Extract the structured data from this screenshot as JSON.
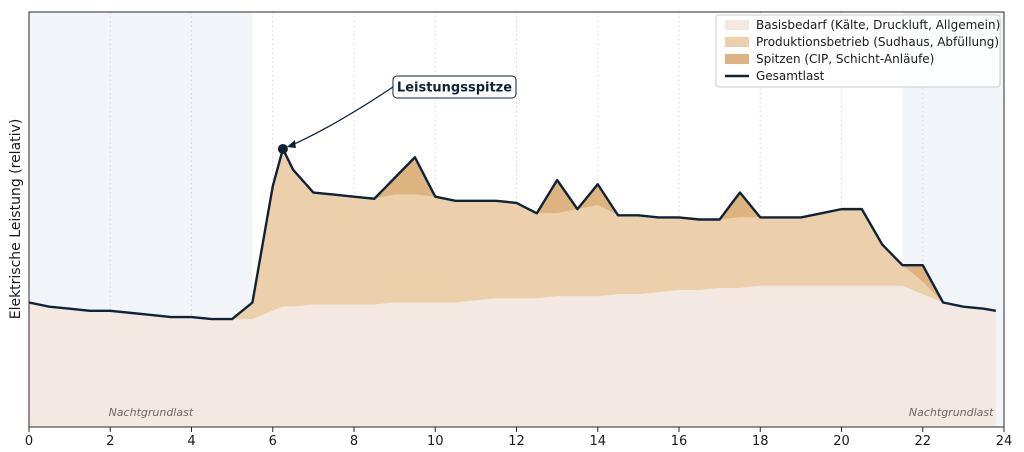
{
  "chart_data": {
    "type": "area",
    "title": "",
    "xlabel": "",
    "ylabel": "Elektrische Leistung (relativ)",
    "xlim": [
      0,
      24
    ],
    "ylim": [
      0,
      1.0
    ],
    "xticks": [
      0,
      2,
      4,
      6,
      8,
      10,
      12,
      14,
      16,
      18,
      20,
      22,
      24
    ],
    "stacked": true,
    "legend_position": "top-right",
    "grid": "vertical-dotted",
    "x": [
      0,
      0.5,
      1,
      1.5,
      2,
      2.5,
      3,
      3.5,
      4,
      4.5,
      5,
      5.5,
      6,
      6.25,
      6.5,
      7,
      7.5,
      8,
      8.5,
      9,
      9.5,
      10,
      10.5,
      11,
      11.5,
      12,
      12.5,
      13,
      13.5,
      14,
      14.5,
      15,
      15.5,
      16,
      16.5,
      17,
      17.5,
      18,
      18.5,
      19,
      19.5,
      20,
      20.5,
      21,
      21.5,
      22,
      22.5,
      23,
      23.5,
      23.8
    ],
    "series": [
      {
        "name": "Basisbedarf (Kälte, Druckluft, Allgemein)",
        "color": "#f4e9e2",
        "values": [
          0.3,
          0.29,
          0.285,
          0.28,
          0.28,
          0.275,
          0.27,
          0.265,
          0.265,
          0.26,
          0.26,
          0.26,
          0.28,
          0.29,
          0.29,
          0.295,
          0.295,
          0.295,
          0.295,
          0.3,
          0.3,
          0.3,
          0.3,
          0.305,
          0.31,
          0.31,
          0.31,
          0.315,
          0.315,
          0.315,
          0.32,
          0.32,
          0.325,
          0.33,
          0.33,
          0.335,
          0.335,
          0.34,
          0.34,
          0.34,
          0.34,
          0.34,
          0.34,
          0.34,
          0.34,
          0.32,
          0.3,
          0.29,
          0.285,
          0.28
        ]
      },
      {
        "name": "Produktionsbetrieb (Sudhaus, Abfüllung)",
        "color": "#ecd0ac",
        "values": [
          0,
          0,
          0,
          0,
          0,
          0,
          0,
          0,
          0,
          0,
          0,
          0.04,
          0.3,
          0.38,
          0.33,
          0.27,
          0.265,
          0.26,
          0.255,
          0.26,
          0.26,
          0.255,
          0.245,
          0.24,
          0.235,
          0.23,
          0.205,
          0.2,
          0.21,
          0.22,
          0.19,
          0.19,
          0.18,
          0.175,
          0.17,
          0.165,
          0.17,
          0.165,
          0.165,
          0.165,
          0.175,
          0.185,
          0.185,
          0.1,
          0.05,
          0.03,
          0,
          0,
          0,
          0
        ]
      },
      {
        "name": "Spitzen (CIP, Schicht-Anläufe)",
        "color": "#ddb47f",
        "values": [
          0,
          0,
          0,
          0,
          0,
          0,
          0,
          0,
          0,
          0,
          0,
          0,
          0,
          0,
          0,
          0,
          0,
          0,
          0,
          0.04,
          0.09,
          0,
          0,
          0,
          0,
          0,
          0,
          0.08,
          0,
          0.05,
          0,
          0,
          0,
          0,
          0,
          0,
          0.06,
          0,
          0,
          0,
          0,
          0,
          0,
          0,
          0,
          0.04,
          0,
          0,
          0,
          0
        ]
      }
    ],
    "total_line": {
      "name": "Gesamtlast",
      "color": "#0f2238"
    },
    "annotations": [
      {
        "text": "Leistungsspitze",
        "x": 6.25
      },
      {
        "text": "Nachtgrundlast",
        "x_range": [
          0,
          5.5
        ]
      },
      {
        "text": "Nachtgrundlast",
        "x_range": [
          21.5,
          24
        ]
      }
    ]
  }
}
